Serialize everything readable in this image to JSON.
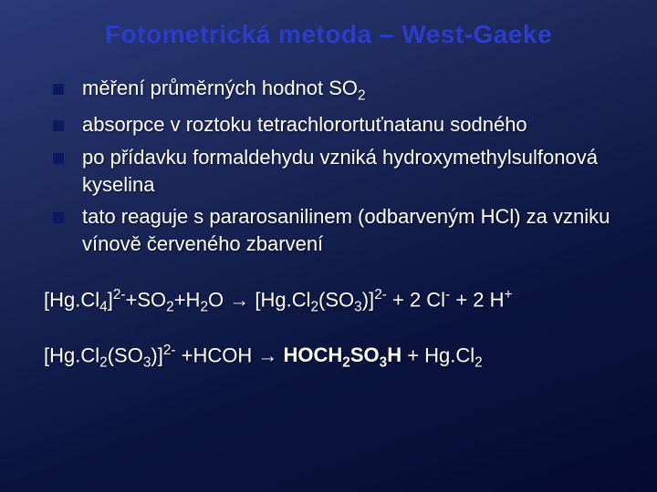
{
  "title": "Fotometrická metoda – West-Gaeke",
  "title_color": "#2b3dc9",
  "title_fontsize": 28,
  "text_color": "#ffffff",
  "body_fontsize": 22,
  "bullet_marker_color": "#0a1a60",
  "background_gradient": [
    "#2a3a7a",
    "#1e2a5c",
    "#0a1540",
    "#050b30"
  ],
  "font_family": "Comic Sans MS",
  "bullets": [
    {
      "html": "měření průměrných hodnot SO<sub>2</sub>"
    },
    {
      "html": "absorpce v roztoku tetrachlorortuťnatanu sodného"
    },
    {
      "html": "po přídavku formaldehydu vzniká hydroxymethylsulfonová kyselina"
    },
    {
      "html": "tato reaguje s pararosanilinem (odbarveným HCl) za vzniku vínově červeného zbarvení"
    }
  ],
  "equations": [
    {
      "html": "[Hg.Cl<sub>4</sub>]<sup>2-</sup>+SO<sub>2</sub>+H<sub>2</sub>O &rarr; [Hg.Cl<sub>2</sub>(SO<sub>3</sub>)]<sup>2-</sup> + 2 Cl<sup>-</sup> + 2 H<sup>+</sup>"
    },
    {
      "html": "[Hg.Cl<sub>2</sub>(SO<sub>3</sub>)]<sup>2-</sup> +HCOH &rarr; <span class=\"bold\">HOCH<sub>2</sub>SO<sub>3</sub>H</span> + Hg.Cl<sub>2</sub>"
    }
  ]
}
